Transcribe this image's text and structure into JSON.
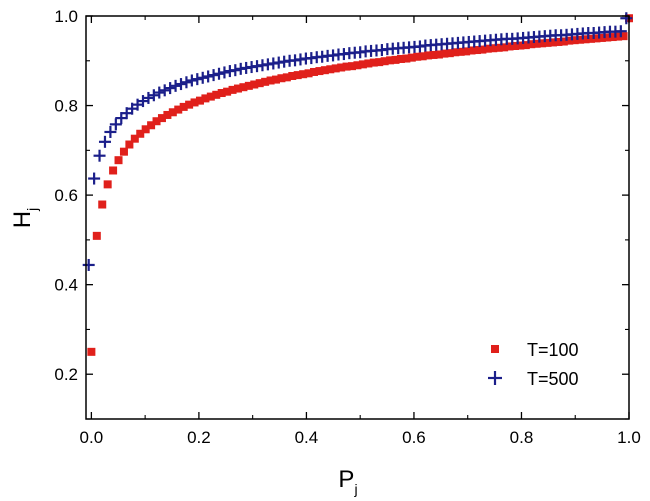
{
  "chart_data": {
    "type": "scatter",
    "xlabel": "P",
    "xlabel_sub": "j",
    "ylabel": "H",
    "ylabel_sub": "j",
    "xlim": [
      -0.01,
      1.0
    ],
    "ylim": [
      0.1,
      1.0
    ],
    "xticks": [
      "0.0",
      "0.2",
      "0.4",
      "0.6",
      "0.8",
      "1.0"
    ],
    "yticks": [
      "0.2",
      "0.4",
      "0.6",
      "0.8",
      "1.0"
    ],
    "legend_position": "bottom-right",
    "series": [
      {
        "name": "T=100",
        "marker": "square",
        "color": "#e0201b",
        "x": [
          0.0,
          0.0101,
          0.0202,
          0.0303,
          0.0404,
          0.0505,
          0.0606,
          0.0707,
          0.0808,
          0.0909,
          0.101,
          0.1111,
          0.1212,
          0.1313,
          0.1414,
          0.1515,
          0.1616,
          0.1717,
          0.1818,
          0.1919,
          0.202,
          0.2121,
          0.2222,
          0.2323,
          0.2424,
          0.2525,
          0.2626,
          0.2727,
          0.2828,
          0.2929,
          0.303,
          0.3131,
          0.3232,
          0.3333,
          0.3434,
          0.3535,
          0.3636,
          0.3737,
          0.3838,
          0.3939,
          0.404,
          0.4141,
          0.4242,
          0.4343,
          0.4444,
          0.4545,
          0.4646,
          0.4747,
          0.4848,
          0.4949,
          0.5051,
          0.5152,
          0.5253,
          0.5354,
          0.5455,
          0.5556,
          0.5657,
          0.5758,
          0.5859,
          0.596,
          0.6061,
          0.6162,
          0.6263,
          0.6364,
          0.6465,
          0.6566,
          0.6667,
          0.6768,
          0.6869,
          0.697,
          0.7071,
          0.7172,
          0.7273,
          0.7374,
          0.7475,
          0.7576,
          0.7677,
          0.7778,
          0.7879,
          0.798,
          0.8081,
          0.8182,
          0.8283,
          0.8384,
          0.8485,
          0.8586,
          0.8687,
          0.8788,
          0.8889,
          0.899,
          0.9091,
          0.9192,
          0.9293,
          0.9394,
          0.9495,
          0.9596,
          0.9697,
          0.9798,
          0.9899,
          1.0
        ],
        "y": [
          0.25,
          0.509,
          0.579,
          0.624,
          0.655,
          0.678,
          0.697,
          0.713,
          0.726,
          0.737,
          0.747,
          0.756,
          0.765,
          0.772,
          0.779,
          0.785,
          0.791,
          0.797,
          0.802,
          0.807,
          0.811,
          0.816,
          0.82,
          0.824,
          0.828,
          0.831,
          0.835,
          0.838,
          0.841,
          0.844,
          0.847,
          0.85,
          0.853,
          0.856,
          0.858,
          0.861,
          0.863,
          0.866,
          0.868,
          0.87,
          0.872,
          0.875,
          0.877,
          0.879,
          0.881,
          0.883,
          0.885,
          0.887,
          0.888,
          0.89,
          0.892,
          0.894,
          0.896,
          0.897,
          0.899,
          0.901,
          0.902,
          0.904,
          0.905,
          0.907,
          0.909,
          0.91,
          0.912,
          0.913,
          0.914,
          0.916,
          0.917,
          0.919,
          0.92,
          0.921,
          0.923,
          0.924,
          0.925,
          0.927,
          0.928,
          0.929,
          0.93,
          0.932,
          0.933,
          0.934,
          0.935,
          0.937,
          0.938,
          0.939,
          0.94,
          0.941,
          0.942,
          0.943,
          0.945,
          0.946,
          0.947,
          0.948,
          0.949,
          0.95,
          0.951,
          0.952,
          0.953,
          0.954,
          0.955,
          0.995
        ]
      },
      {
        "name": "T=500",
        "marker": "plus",
        "color": "#1b1f8a",
        "x": [
          -0.005,
          0.0051,
          0.0152,
          0.0253,
          0.0354,
          0.0455,
          0.0556,
          0.0657,
          0.0758,
          0.0859,
          0.096,
          0.1061,
          0.1162,
          0.1263,
          0.1364,
          0.1465,
          0.1566,
          0.1667,
          0.1768,
          0.1869,
          0.197,
          0.2071,
          0.2172,
          0.2273,
          0.2374,
          0.2475,
          0.2576,
          0.2677,
          0.2778,
          0.2879,
          0.298,
          0.3081,
          0.3182,
          0.3283,
          0.3384,
          0.3485,
          0.3586,
          0.3687,
          0.3788,
          0.3889,
          0.399,
          0.4091,
          0.4192,
          0.4293,
          0.4394,
          0.4495,
          0.4596,
          0.4697,
          0.4798,
          0.4899,
          0.5,
          0.5101,
          0.5202,
          0.5303,
          0.5404,
          0.5505,
          0.5606,
          0.5707,
          0.5808,
          0.5909,
          0.601,
          0.6111,
          0.6212,
          0.6313,
          0.6414,
          0.6515,
          0.6616,
          0.6717,
          0.6818,
          0.6919,
          0.702,
          0.7121,
          0.7222,
          0.7323,
          0.7424,
          0.7525,
          0.7626,
          0.7727,
          0.7828,
          0.7929,
          0.803,
          0.8131,
          0.8232,
          0.8333,
          0.8434,
          0.8535,
          0.8636,
          0.8737,
          0.8838,
          0.8939,
          0.904,
          0.9141,
          0.9242,
          0.9343,
          0.9444,
          0.9545,
          0.9646,
          0.9747,
          0.9848,
          0.995
        ],
        "y": [
          0.444,
          0.637,
          0.688,
          0.719,
          0.741,
          0.758,
          0.772,
          0.783,
          0.793,
          0.802,
          0.81,
          0.817,
          0.823,
          0.829,
          0.834,
          0.839,
          0.844,
          0.848,
          0.852,
          0.856,
          0.859,
          0.862,
          0.865,
          0.868,
          0.871,
          0.874,
          0.877,
          0.879,
          0.882,
          0.884,
          0.886,
          0.888,
          0.89,
          0.892,
          0.894,
          0.896,
          0.898,
          0.9,
          0.901,
          0.903,
          0.905,
          0.906,
          0.908,
          0.909,
          0.911,
          0.912,
          0.914,
          0.915,
          0.917,
          0.918,
          0.919,
          0.921,
          0.922,
          0.923,
          0.924,
          0.926,
          0.927,
          0.928,
          0.929,
          0.93,
          0.931,
          0.932,
          0.934,
          0.935,
          0.936,
          0.937,
          0.938,
          0.939,
          0.94,
          0.941,
          0.942,
          0.943,
          0.944,
          0.945,
          0.946,
          0.947,
          0.948,
          0.949,
          0.949,
          0.95,
          0.951,
          0.952,
          0.953,
          0.954,
          0.955,
          0.956,
          0.957,
          0.957,
          0.958,
          0.959,
          0.96,
          0.961,
          0.962,
          0.962,
          0.963,
          0.964,
          0.965,
          0.965,
          0.966,
          0.995
        ]
      }
    ]
  }
}
